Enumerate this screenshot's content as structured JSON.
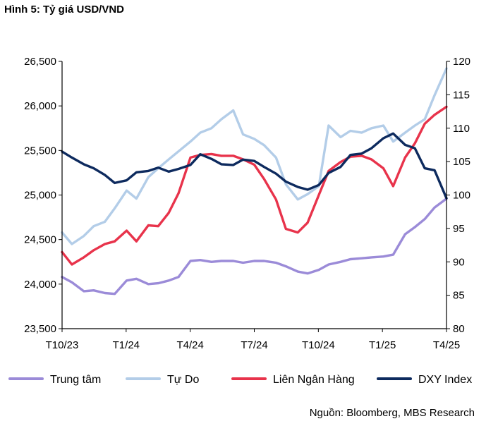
{
  "figure_title": "Hình 5: Tỷ giá USD/VND",
  "source": "Nguồn: Bloomberg, MBS Research",
  "chart_data": {
    "type": "line",
    "title": "Hình 5: Tỷ giá USD/VND",
    "xlabel": "",
    "ylabel": "",
    "x_ticks": [
      "T10/23",
      "T1/24",
      "T4/24",
      "T7/24",
      "T10/24",
      "T1/25",
      "T4/25"
    ],
    "x_range": [
      "2023-10-01",
      "2025-04-01"
    ],
    "y_left": {
      "ticks": [
        "23,500",
        "24,000",
        "24,500",
        "25,000",
        "25,500",
        "26,000",
        "26,500"
      ],
      "min": 23500,
      "max": 26500
    },
    "y_right": {
      "ticks": [
        "80",
        "85",
        "90",
        "95",
        "100",
        "105",
        "110",
        "115",
        "120"
      ],
      "min": 80,
      "max": 120
    },
    "grid": false,
    "legend_position": "bottom",
    "series": [
      {
        "name": "Trung tâm",
        "axis": "left",
        "color": "#9b8bd8",
        "x": [
          "2023-10-01",
          "2023-10-15",
          "2023-11-01",
          "2023-11-15",
          "2023-12-01",
          "2023-12-15",
          "2024-01-01",
          "2024-01-15",
          "2024-02-01",
          "2024-02-15",
          "2024-03-01",
          "2024-03-15",
          "2024-04-01",
          "2024-04-15",
          "2024-05-01",
          "2024-05-15",
          "2024-06-01",
          "2024-06-15",
          "2024-07-01",
          "2024-07-15",
          "2024-08-01",
          "2024-08-15",
          "2024-09-01",
          "2024-09-15",
          "2024-10-01",
          "2024-10-15",
          "2024-11-01",
          "2024-11-15",
          "2024-12-01",
          "2024-12-15",
          "2025-01-01",
          "2025-01-15",
          "2025-02-01",
          "2025-02-15",
          "2025-03-01",
          "2025-03-15",
          "2025-04-01"
        ],
        "y": [
          24080,
          24020,
          23920,
          23930,
          23900,
          23890,
          24040,
          24060,
          24000,
          24010,
          24040,
          24080,
          24260,
          24270,
          24250,
          24260,
          24260,
          24240,
          24260,
          24260,
          24240,
          24200,
          24140,
          24120,
          24160,
          24220,
          24250,
          24280,
          24290,
          24300,
          24310,
          24330,
          24560,
          24640,
          24730,
          24860,
          24960
        ]
      },
      {
        "name": "Tự Do",
        "axis": "left",
        "color": "#b3cde8",
        "x": [
          "2023-10-01",
          "2023-10-15",
          "2023-11-01",
          "2023-11-15",
          "2023-12-01",
          "2023-12-15",
          "2024-01-01",
          "2024-01-15",
          "2024-02-01",
          "2024-02-15",
          "2024-03-01",
          "2024-03-15",
          "2024-04-01",
          "2024-04-15",
          "2024-05-01",
          "2024-05-15",
          "2024-06-01",
          "2024-06-15",
          "2024-07-01",
          "2024-07-15",
          "2024-08-01",
          "2024-08-15",
          "2024-09-01",
          "2024-09-15",
          "2024-10-01",
          "2024-10-15",
          "2024-11-01",
          "2024-11-15",
          "2024-12-01",
          "2024-12-15",
          "2025-01-01",
          "2025-01-15",
          "2025-02-01",
          "2025-02-15",
          "2025-03-01",
          "2025-03-15",
          "2025-04-01"
        ],
        "y": [
          24580,
          24450,
          24540,
          24650,
          24700,
          24850,
          25050,
          24960,
          25200,
          25300,
          25400,
          25490,
          25600,
          25700,
          25750,
          25850,
          25950,
          25680,
          25630,
          25560,
          25420,
          25120,
          24950,
          25010,
          25100,
          25780,
          25650,
          25720,
          25700,
          25750,
          25780,
          25600,
          25700,
          25780,
          25850,
          26120,
          26420
        ]
      },
      {
        "name": "Liên Ngân Hàng",
        "axis": "left",
        "color": "#e8334b",
        "x": [
          "2023-10-01",
          "2023-10-15",
          "2023-11-01",
          "2023-11-15",
          "2023-12-01",
          "2023-12-15",
          "2024-01-01",
          "2024-01-15",
          "2024-02-01",
          "2024-02-15",
          "2024-03-01",
          "2024-03-15",
          "2024-04-01",
          "2024-04-15",
          "2024-05-01",
          "2024-05-15",
          "2024-06-01",
          "2024-06-15",
          "2024-07-01",
          "2024-07-15",
          "2024-08-01",
          "2024-08-15",
          "2024-09-01",
          "2024-09-15",
          "2024-10-01",
          "2024-10-15",
          "2024-11-01",
          "2024-11-15",
          "2024-12-01",
          "2024-12-15",
          "2025-01-01",
          "2025-01-15",
          "2025-02-01",
          "2025-02-15",
          "2025-03-01",
          "2025-03-15",
          "2025-04-01"
        ],
        "y": [
          24360,
          24220,
          24300,
          24380,
          24450,
          24480,
          24600,
          24480,
          24660,
          24650,
          24800,
          25020,
          25420,
          25450,
          25460,
          25440,
          25440,
          25400,
          25340,
          25180,
          24950,
          24620,
          24580,
          24690,
          25000,
          25270,
          25370,
          25430,
          25440,
          25400,
          25300,
          25100,
          25420,
          25580,
          25800,
          25900,
          25990
        ]
      },
      {
        "name": "DXY Index",
        "axis": "right",
        "color": "#0d2a5e",
        "x": [
          "2023-10-01",
          "2023-10-15",
          "2023-11-01",
          "2023-11-15",
          "2023-12-01",
          "2023-12-15",
          "2024-01-01",
          "2024-01-15",
          "2024-02-01",
          "2024-02-15",
          "2024-03-01",
          "2024-03-15",
          "2024-04-01",
          "2024-04-15",
          "2024-05-01",
          "2024-05-15",
          "2024-06-01",
          "2024-06-15",
          "2024-07-01",
          "2024-07-15",
          "2024-08-01",
          "2024-08-15",
          "2024-09-01",
          "2024-09-15",
          "2024-10-01",
          "2024-10-15",
          "2024-11-01",
          "2024-11-15",
          "2024-12-01",
          "2024-12-15",
          "2025-01-01",
          "2025-01-15",
          "2025-02-01",
          "2025-02-15",
          "2025-03-01",
          "2025-03-15",
          "2025-04-01"
        ],
        "y": [
          106.5,
          105.6,
          104.6,
          104.0,
          103.0,
          101.8,
          102.2,
          103.4,
          103.6,
          104.1,
          103.5,
          103.9,
          104.5,
          106.1,
          105.4,
          104.6,
          104.5,
          105.3,
          105.1,
          104.2,
          103.2,
          102.0,
          101.2,
          100.8,
          101.5,
          103.3,
          104.2,
          106.0,
          106.2,
          107.0,
          108.5,
          109.2,
          107.5,
          107.0,
          104.0,
          103.7,
          99.5
        ]
      }
    ]
  }
}
